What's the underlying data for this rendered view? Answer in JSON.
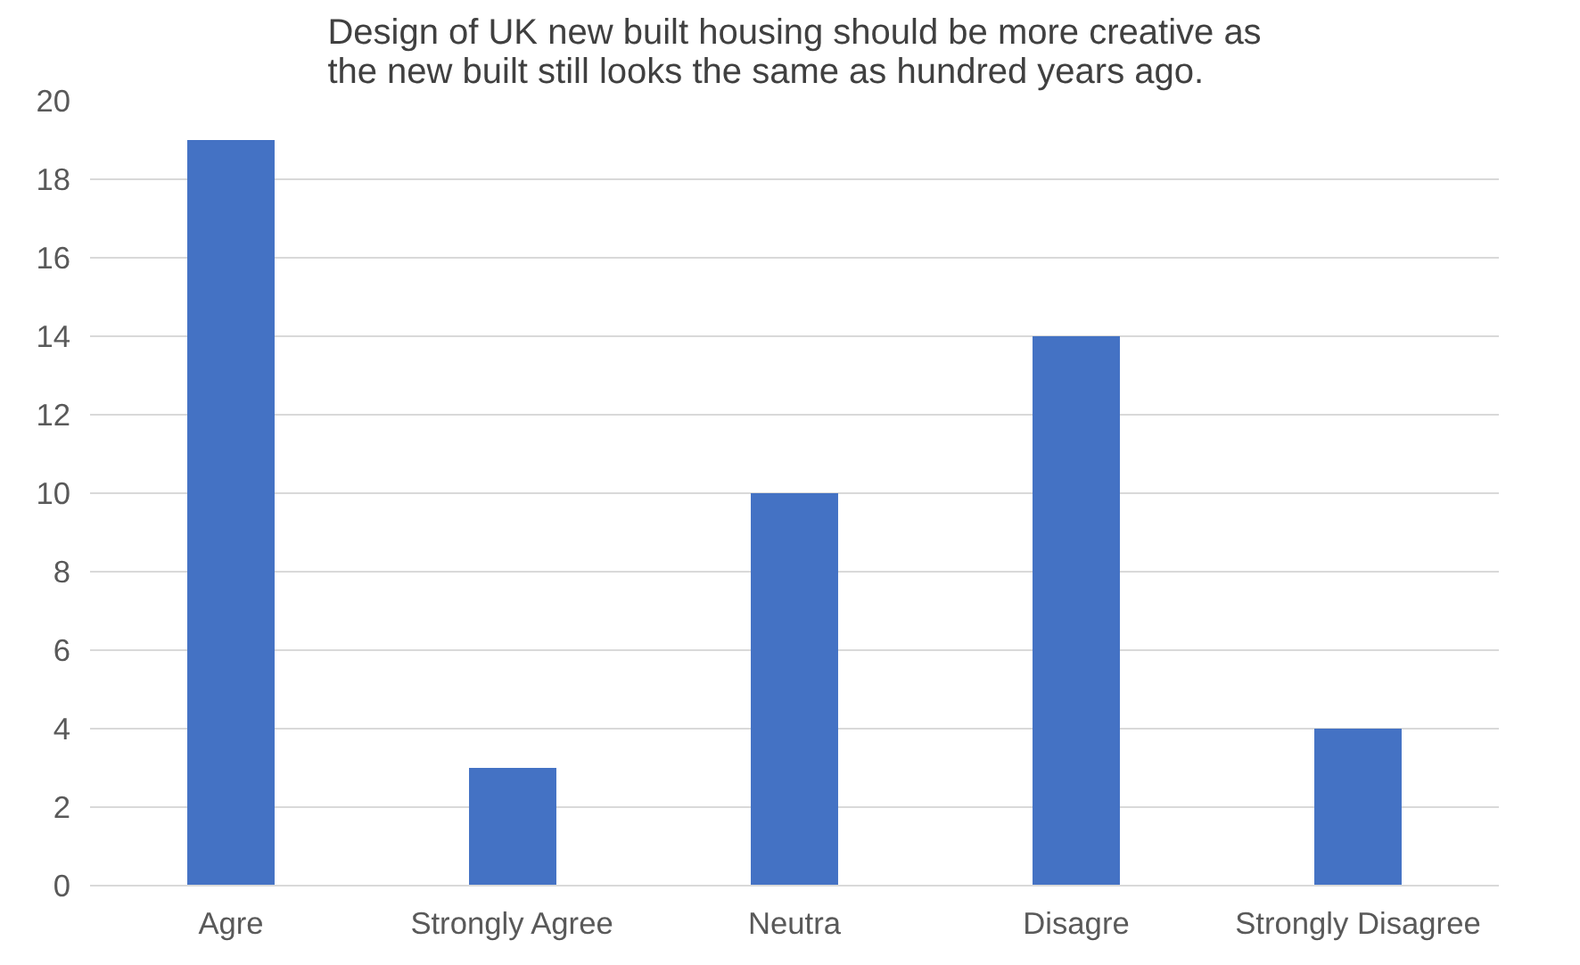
{
  "chart_data": {
    "type": "bar",
    "title": "Design of UK new built housing should be more creative as\nthe new built still looks the same as hundred years ago.",
    "categories": [
      "Agre",
      "Strongly Agree",
      "Neutra",
      "Disagre",
      "Strongly Disagree"
    ],
    "values": [
      19,
      3,
      10,
      14,
      4
    ],
    "color": "#4472c4",
    "ylim": [
      0,
      20
    ],
    "yticks": [
      0,
      2,
      4,
      6,
      8,
      10,
      12,
      14,
      16,
      18,
      20
    ],
    "grid": "y"
  }
}
